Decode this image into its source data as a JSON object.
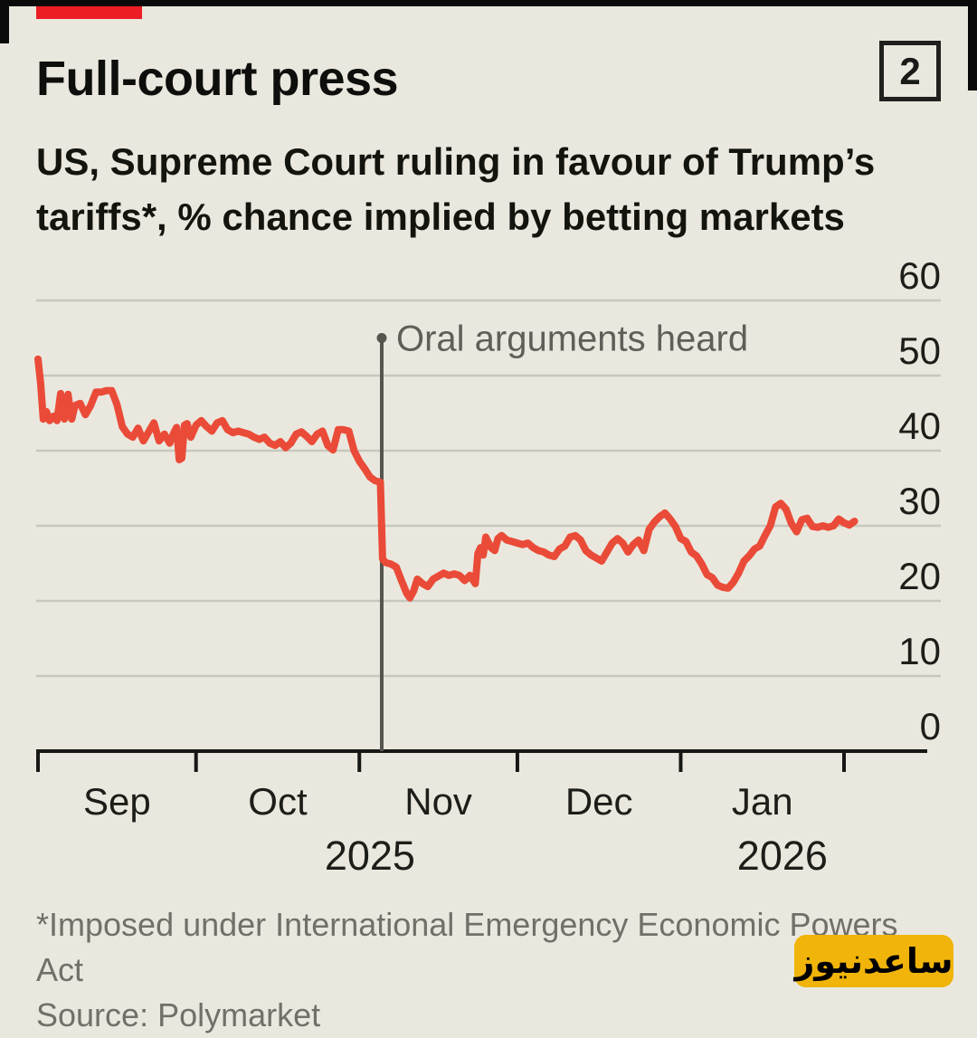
{
  "page": {
    "background": "#EAE8DE",
    "frame_color": "#0A0A0A"
  },
  "header": {
    "tag_color": "#EC1D25",
    "title": "Full-court press",
    "index_label": "2",
    "subtitle_line1": "US, Supreme Court ruling in favour of Trump’s",
    "subtitle_line2": "tariffs*, % chance implied by betting markets"
  },
  "chart_data": {
    "type": "line",
    "title": "Full-court press",
    "subtitle": "US, Supreme Court ruling in favour of Trump’s tariffs*, % chance implied by betting markets",
    "unit": "% chance",
    "ylim": [
      0,
      60
    ],
    "y_ticks": [
      0,
      10,
      20,
      30,
      40,
      50,
      60
    ],
    "grid": "horizontal",
    "gridline_color": "#C8C7BD",
    "axis_color": "#171715",
    "x_start_date": "2025-09-01",
    "month_boundaries_days": [
      0,
      30,
      61,
      91,
      122,
      153
    ],
    "month_labels": [
      {
        "label": "Sep",
        "day": 15
      },
      {
        "label": "Oct",
        "day": 45.5
      },
      {
        "label": "Nov",
        "day": 76
      },
      {
        "label": "Dec",
        "day": 106.5
      },
      {
        "label": "Jan",
        "day": 137.5
      }
    ],
    "year_labels": [
      {
        "label": "2025",
        "day": 63
      },
      {
        "label": "2026",
        "day": 141.3
      }
    ],
    "annotation": {
      "text": "Oral arguments heard",
      "day": 65.25,
      "value": 55,
      "event_date": "2025-11-05",
      "line_color": "#55544F",
      "text_color": "#5F5E58"
    },
    "series": [
      {
        "name": "Supreme Court rules in favour of tariffs",
        "color": "#EA4B38",
        "points": [
          [
            0,
            52.2
          ],
          [
            0.5,
            49.0
          ],
          [
            1,
            44.2
          ],
          [
            1.6,
            45.2
          ],
          [
            2.2,
            44.0
          ],
          [
            3,
            44.6
          ],
          [
            3.6,
            44.0
          ],
          [
            4.3,
            47.6
          ],
          [
            5,
            44.2
          ],
          [
            5.7,
            47.5
          ],
          [
            6.4,
            44.2
          ],
          [
            7,
            46.0
          ],
          [
            8,
            46.3
          ],
          [
            9,
            44.8
          ],
          [
            10,
            46.0
          ],
          [
            11,
            47.8
          ],
          [
            12,
            47.8
          ],
          [
            13,
            48.0
          ],
          [
            14,
            48.0
          ],
          [
            15,
            46.1
          ],
          [
            16,
            43.2
          ],
          [
            17,
            42.2
          ],
          [
            18,
            41.8
          ],
          [
            19,
            43.0
          ],
          [
            20,
            41.3
          ],
          [
            21,
            42.5
          ],
          [
            22,
            43.7
          ],
          [
            23,
            41.3
          ],
          [
            24,
            42.2
          ],
          [
            25,
            41.0
          ],
          [
            25.8,
            42.4
          ],
          [
            26.3,
            43.1
          ],
          [
            26.8,
            38.8
          ],
          [
            27.3,
            39.0
          ],
          [
            27.8,
            43.4
          ],
          [
            28.3,
            43.6
          ],
          [
            29,
            41.8
          ],
          [
            30,
            43.4
          ],
          [
            31,
            44.0
          ],
          [
            32,
            43.2
          ],
          [
            33,
            42.6
          ],
          [
            34,
            43.7
          ],
          [
            35,
            44.0
          ],
          [
            36,
            42.8
          ],
          [
            37,
            42.4
          ],
          [
            38,
            42.6
          ],
          [
            39,
            42.4
          ],
          [
            40,
            42.2
          ],
          [
            41,
            41.8
          ],
          [
            42,
            41.5
          ],
          [
            43,
            41.8
          ],
          [
            44,
            41.0
          ],
          [
            45,
            40.7
          ],
          [
            46,
            41.2
          ],
          [
            47,
            40.4
          ],
          [
            48,
            41.0
          ],
          [
            49,
            42.2
          ],
          [
            50,
            42.5
          ],
          [
            51,
            41.9
          ],
          [
            52,
            41.2
          ],
          [
            53,
            42.2
          ],
          [
            54,
            42.6
          ],
          [
            55,
            40.7
          ],
          [
            56,
            40.1
          ],
          [
            57,
            42.8
          ],
          [
            58,
            42.8
          ],
          [
            59,
            42.6
          ],
          [
            60,
            40.0
          ],
          [
            61,
            38.6
          ],
          [
            62,
            37.6
          ],
          [
            63,
            36.5
          ],
          [
            64,
            36.0
          ],
          [
            65,
            35.8
          ],
          [
            65.4,
            25.6
          ],
          [
            66,
            25.1
          ],
          [
            67,
            24.9
          ],
          [
            68,
            24.5
          ],
          [
            69,
            22.7
          ],
          [
            70,
            21.0
          ],
          [
            70.6,
            20.4
          ],
          [
            71.3,
            21.3
          ],
          [
            72,
            22.9
          ],
          [
            73,
            22.3
          ],
          [
            74,
            21.9
          ],
          [
            75,
            22.9
          ],
          [
            76,
            23.3
          ],
          [
            77,
            23.7
          ],
          [
            78,
            23.4
          ],
          [
            79,
            23.6
          ],
          [
            80,
            23.4
          ],
          [
            81,
            22.7
          ],
          [
            82,
            23.4
          ],
          [
            83,
            22.3
          ],
          [
            83.5,
            26.3
          ],
          [
            84,
            27.1
          ],
          [
            84.5,
            26.1
          ],
          [
            85,
            28.5
          ],
          [
            86,
            27.1
          ],
          [
            86.7,
            26.7
          ],
          [
            87.3,
            28.3
          ],
          [
            88,
            28.7
          ],
          [
            89,
            28.1
          ],
          [
            90,
            27.9
          ],
          [
            91,
            27.7
          ],
          [
            92,
            27.5
          ],
          [
            93,
            27.7
          ],
          [
            94,
            27.1
          ],
          [
            95,
            26.7
          ],
          [
            96,
            26.5
          ],
          [
            97,
            26.1
          ],
          [
            98,
            25.9
          ],
          [
            99,
            26.9
          ],
          [
            100,
            27.3
          ],
          [
            101,
            28.5
          ],
          [
            102,
            28.7
          ],
          [
            103,
            28.1
          ],
          [
            104,
            26.7
          ],
          [
            105,
            26.1
          ],
          [
            106,
            25.7
          ],
          [
            107,
            25.3
          ],
          [
            108,
            26.5
          ],
          [
            109,
            27.7
          ],
          [
            110,
            28.3
          ],
          [
            111,
            27.7
          ],
          [
            112,
            26.5
          ],
          [
            113,
            27.5
          ],
          [
            114,
            28.1
          ],
          [
            115,
            26.7
          ],
          [
            116,
            29.5
          ],
          [
            117,
            30.5
          ],
          [
            118,
            31.2
          ],
          [
            119,
            31.7
          ],
          [
            120,
            30.9
          ],
          [
            121,
            29.9
          ],
          [
            122,
            28.3
          ],
          [
            123,
            27.9
          ],
          [
            124,
            26.5
          ],
          [
            125,
            26.0
          ],
          [
            126,
            24.9
          ],
          [
            127,
            23.5
          ],
          [
            128,
            23.1
          ],
          [
            129,
            22.1
          ],
          [
            130,
            21.8
          ],
          [
            131,
            21.7
          ],
          [
            132,
            22.5
          ],
          [
            133,
            23.7
          ],
          [
            134,
            25.3
          ],
          [
            135,
            26.0
          ],
          [
            136,
            26.9
          ],
          [
            137,
            27.3
          ],
          [
            138,
            28.7
          ],
          [
            139,
            30.0
          ],
          [
            140,
            32.5
          ],
          [
            141,
            33.0
          ],
          [
            142,
            32.2
          ],
          [
            143,
            30.3
          ],
          [
            144,
            29.2
          ],
          [
            145,
            30.8
          ],
          [
            146,
            31.0
          ],
          [
            147,
            29.9
          ],
          [
            148,
            29.8
          ],
          [
            149,
            30.0
          ],
          [
            150,
            29.8
          ],
          [
            151,
            30.0
          ],
          [
            152,
            30.9
          ],
          [
            153,
            30.4
          ],
          [
            154,
            30.1
          ],
          [
            155,
            30.6
          ]
        ]
      }
    ]
  },
  "footer": {
    "note": "*Imposed under International Emergency Economic Powers Act",
    "source": "Source: Polymarket"
  },
  "watermark": {
    "text": "ساعدنیوز",
    "background": "#F0B40A"
  }
}
